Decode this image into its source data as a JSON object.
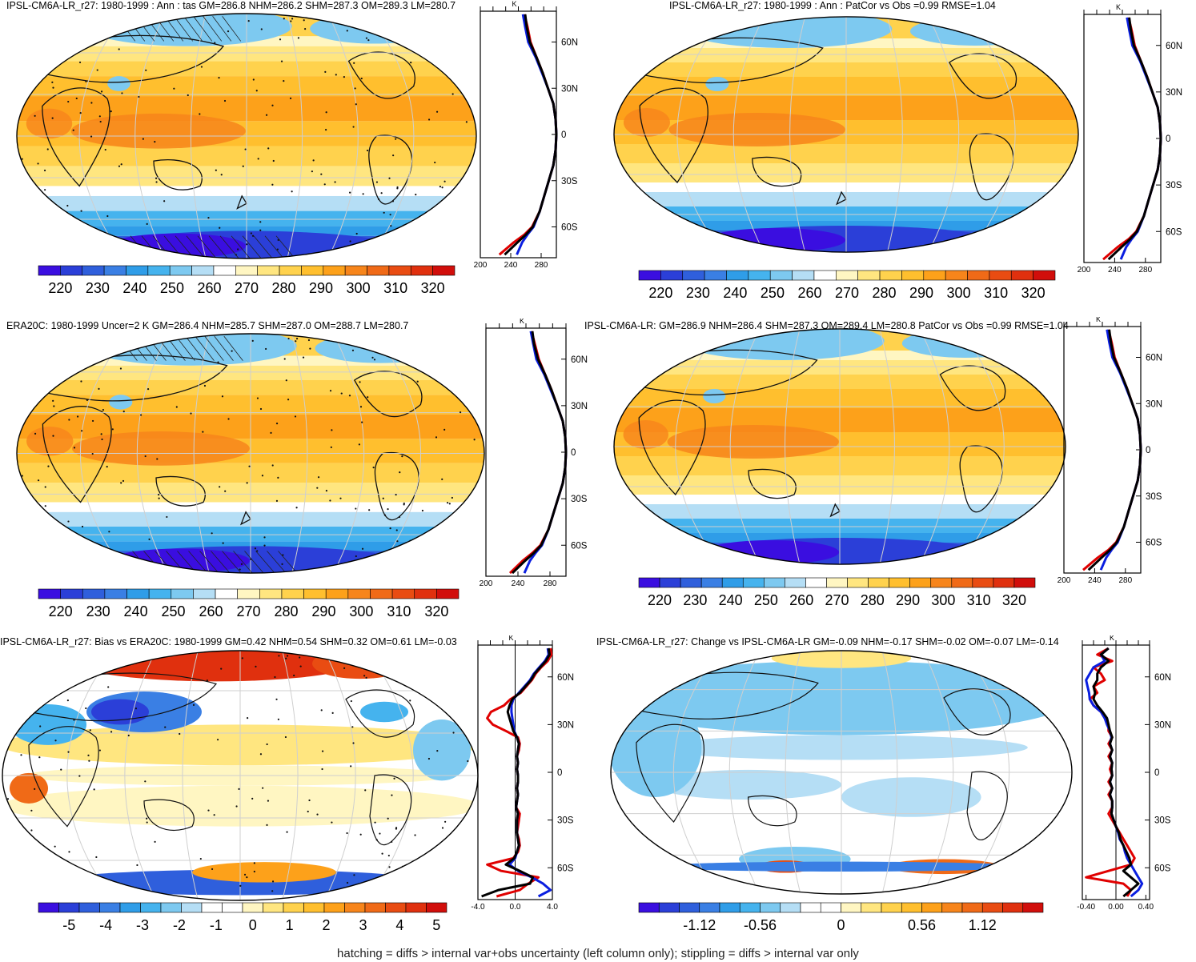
{
  "colors": {
    "temp_scale": [
      "#3a0ee0",
      "#2b3fd8",
      "#2f5fdc",
      "#3a7fe4",
      "#2f9de8",
      "#45b3ee",
      "#7dc9f0",
      "#b5def5",
      "#ffffff",
      "#fff6c2",
      "#ffe680",
      "#ffd24d",
      "#ffbf2e",
      "#fda11a",
      "#f7851b",
      "#f06a17",
      "#e94c12",
      "#e0300e",
      "#d10e0b"
    ],
    "bias_scale": [
      "#3a0ee0",
      "#2b3fd8",
      "#2f5fdc",
      "#3a7fe4",
      "#2f9de8",
      "#45b3ee",
      "#7dc9f0",
      "#b5def5",
      "#ffffff",
      "#ffffff",
      "#fff6c2",
      "#ffe680",
      "#ffd24d",
      "#ffbf2e",
      "#fda11a",
      "#f7851b",
      "#f06a17",
      "#e94c12",
      "#e0300e",
      "#d10e0b"
    ],
    "change_scale": [
      "#3a0ee0",
      "#2b3fd8",
      "#2f5fdc",
      "#3a7fe4",
      "#2f9de8",
      "#45b3ee",
      "#7dc9f0",
      "#b5def5",
      "#ffffff",
      "#ffffff",
      "#fff6c2",
      "#ffe680",
      "#ffd24d",
      "#ffbf2e",
      "#fda11a",
      "#f7851b",
      "#f06a17",
      "#e94c12",
      "#e0300e",
      "#d10e0b"
    ],
    "series": {
      "model": "#e00000",
      "obs": "#0a1ee0",
      "ref": "#000000"
    }
  },
  "chart_data": [
    {
      "type": "heatmap",
      "title": "IPSL-CM6A-LR_r27: 1980-1999 : Ann : tas GM=286.8 NHM=286.2 SHM=287.3 OM=289.3 LM=280.7",
      "colorbar_ticks": [
        "220",
        "230",
        "240",
        "250",
        "260",
        "270",
        "280",
        "290",
        "300",
        "310",
        "320"
      ],
      "zonal_profile": {
        "unit": "K",
        "x_ticks": [
          "200",
          "240",
          "280"
        ],
        "y_ticks": [
          "60N",
          "30N",
          "0",
          "30S",
          "60S"
        ],
        "xlim": [
          200,
          300
        ],
        "lat": [
          78,
          70,
          60,
          50,
          40,
          30,
          20,
          10,
          0,
          -10,
          -20,
          -30,
          -40,
          -50,
          -60,
          -65,
          -70,
          -78
        ],
        "series": [
          {
            "values": [
              258,
              262,
              266,
              274,
              282,
              289,
              296,
              299,
              300,
              299,
              296,
              290,
              284,
              278,
              268,
              258,
              244,
              225
            ]
          },
          {
            "values": [
              256,
              259,
              263,
              273,
              281,
              289,
              296,
              299,
              300,
              299,
              296,
              290,
              284,
              278,
              270,
              262,
              255,
              248
            ]
          },
          {
            "values": [
              259,
              261,
              265,
              274,
              282,
              289,
              296,
              299,
              300,
              299,
              296,
              290,
              284,
              278,
              269,
              260,
              249,
              232
            ]
          }
        ]
      }
    },
    {
      "type": "heatmap",
      "title": "IPSL-CM6A-LR_r27: 1980-1999 : Ann : PatCor vs Obs =0.99 RMSE=1.04",
      "colorbar_ticks": [
        "220",
        "230",
        "240",
        "250",
        "260",
        "270",
        "280",
        "290",
        "300",
        "310",
        "320"
      ],
      "zonal_profile": {
        "unit": "K",
        "x_ticks": [
          "200",
          "240",
          "280"
        ],
        "y_ticks": [
          "60N",
          "30N",
          "0",
          "30S",
          "60S"
        ],
        "xlim": [
          200,
          300
        ],
        "lat": [
          78,
          70,
          60,
          50,
          40,
          30,
          20,
          10,
          0,
          -10,
          -20,
          -30,
          -40,
          -50,
          -60,
          -65,
          -70,
          -78
        ],
        "series": [
          {
            "values": [
              258,
              262,
              266,
              274,
              282,
              289,
              296,
              299,
              300,
              299,
              296,
              290,
              284,
              278,
              268,
              258,
              244,
              225
            ]
          },
          {
            "values": [
              256,
              259,
              263,
              273,
              281,
              289,
              296,
              299,
              300,
              299,
              296,
              290,
              284,
              278,
              270,
              262,
              255,
              248
            ]
          },
          {
            "values": [
              259,
              261,
              265,
              274,
              282,
              289,
              296,
              299,
              300,
              299,
              296,
              290,
              284,
              278,
              269,
              260,
              249,
              232
            ]
          }
        ]
      }
    },
    {
      "type": "heatmap",
      "title": "ERA20C: 1980-1999 Uncer=2 K GM=286.4 NHM=285.7 SHM=287.0 OM=288.7 LM=280.7",
      "colorbar_ticks": [
        "220",
        "230",
        "240",
        "250",
        "260",
        "270",
        "280",
        "290",
        "300",
        "310",
        "320"
      ],
      "zonal_profile": {
        "unit": "K",
        "x_ticks": [
          "200",
          "240",
          "280"
        ],
        "y_ticks": [
          "60N",
          "30N",
          "0",
          "30S",
          "60S"
        ],
        "xlim": [
          200,
          300
        ],
        "lat": [
          78,
          70,
          60,
          50,
          40,
          30,
          20,
          10,
          0,
          -10,
          -20,
          -30,
          -40,
          -50,
          -60,
          -65,
          -70,
          -78
        ],
        "series": [
          {
            "values": [
              257,
              261,
              266,
              274,
              282,
              289,
              296,
              299,
              300,
              299,
              296,
              290,
              284,
              278,
              268,
              258,
              246,
              230
            ]
          },
          {
            "values": [
              256,
              259,
              263,
              273,
              281,
              289,
              296,
              299,
              300,
              299,
              296,
              290,
              284,
              278,
              270,
              262,
              255,
              248
            ]
          },
          {
            "values": [
              258,
              260,
              265,
              274,
              282,
              289,
              296,
              299,
              300,
              299,
              296,
              290,
              284,
              278,
              269,
              260,
              249,
              233
            ]
          }
        ]
      }
    },
    {
      "type": "heatmap",
      "title": "IPSL-CM6A-LR: GM=286.9 NHM=286.4 SHM=287.3 OM=289.4 LM=280.8 PatCor vs Obs =0.99 RMSE=1.04",
      "colorbar_ticks": [
        "220",
        "230",
        "240",
        "250",
        "260",
        "270",
        "280",
        "290",
        "300",
        "310",
        "320"
      ],
      "zonal_profile": {
        "unit": "K",
        "x_ticks": [
          "200",
          "240",
          "280"
        ],
        "y_ticks": [
          "60N",
          "30N",
          "0",
          "30S",
          "60S"
        ],
        "xlim": [
          200,
          300
        ],
        "lat": [
          78,
          70,
          60,
          50,
          40,
          30,
          20,
          10,
          0,
          -10,
          -20,
          -30,
          -40,
          -50,
          -60,
          -65,
          -70,
          -78
        ],
        "series": [
          {
            "values": [
              258,
              262,
              266,
              274,
              282,
              289,
              296,
              299,
              300,
              299,
              296,
              290,
              284,
              278,
              268,
              258,
              244,
              225
            ]
          },
          {
            "values": [
              256,
              259,
              263,
              273,
              281,
              289,
              296,
              299,
              300,
              299,
              296,
              290,
              284,
              278,
              270,
              262,
              255,
              248
            ]
          },
          {
            "values": [
              259,
              261,
              265,
              274,
              282,
              289,
              296,
              299,
              300,
              299,
              296,
              290,
              284,
              278,
              269,
              260,
              249,
              232
            ]
          }
        ]
      }
    },
    {
      "type": "heatmap",
      "title": "IPSL-CM6A-LR_r27: Bias vs ERA20C: 1980-1999 GM=0.42 NHM=0.54 SHM=0.32 OM=0.61 LM=-0.03",
      "colorbar_ticks": [
        "-5",
        "-4",
        "-3",
        "-2",
        "-1",
        "0",
        "1",
        "2",
        "3",
        "4",
        "5"
      ],
      "zonal_profile": {
        "unit": "K",
        "x_ticks": [
          "-4.0",
          "0.0",
          "4.0"
        ],
        "y_ticks": [
          "60N",
          "30N",
          "0",
          "30S",
          "60S"
        ],
        "xlim": [
          -4,
          4
        ],
        "lat": [
          78,
          74,
          70,
          66,
          62,
          58,
          54,
          50,
          46,
          42,
          38,
          34,
          30,
          26,
          22,
          18,
          14,
          10,
          6,
          2,
          -2,
          -6,
          -10,
          -14,
          -18,
          -22,
          -26,
          -30,
          -34,
          -38,
          -42,
          -46,
          -50,
          -54,
          -58,
          -62,
          -66,
          -70,
          -74,
          -78
        ],
        "series": [
          {
            "values": [
              3.8,
              3.9,
              3.5,
              2.8,
              2.2,
              1.8,
              1.2,
              0.6,
              -0.5,
              -1.2,
              -2.6,
              -3.0,
              -2.4,
              -1.0,
              0.3,
              0.5,
              0.4,
              0.2,
              0.3,
              0.2,
              0.3,
              0.3,
              0.2,
              0.3,
              0.2,
              0.1,
              0.5,
              0.4,
              0.3,
              0.2,
              0.4,
              0.5,
              0.3,
              -0.2,
              -3.0,
              -1.5,
              2.5,
              1.4,
              0.5,
              -2.0
            ]
          },
          {
            "values": [
              3.5,
              3.6,
              3.2,
              2.6,
              2.0,
              1.6,
              1.0,
              0.4,
              -0.2,
              -0.4,
              -0.4,
              -0.3,
              -0.2,
              -0.1,
              0.2,
              0.4,
              0.3,
              0.2,
              0.3,
              0.2,
              0.3,
              0.3,
              0.2,
              0.3,
              0.2,
              0.1,
              0.3,
              0.2,
              0.2,
              0.2,
              0.3,
              0.4,
              0.2,
              0.0,
              -0.6,
              0.3,
              1.8,
              3.0,
              3.8,
              2.5
            ]
          },
          {
            "values": [
              3.6,
              3.7,
              3.3,
              2.7,
              2.1,
              1.7,
              1.1,
              0.5,
              -0.3,
              -0.6,
              -0.8,
              -0.6,
              -0.4,
              -0.2,
              0.2,
              0.4,
              0.3,
              0.2,
              0.3,
              0.2,
              0.3,
              0.3,
              0.2,
              0.3,
              0.2,
              0.1,
              0.3,
              0.2,
              0.2,
              0.2,
              0.3,
              0.4,
              0.2,
              -0.1,
              -1.0,
              0.5,
              1.9,
              1.6,
              -1.8,
              -3.6
            ]
          }
        ]
      }
    },
    {
      "type": "heatmap",
      "title": "IPSL-CM6A-LR_r27: Change vs IPSL-CM6A-LR GM=-0.09 NHM=-0.17 SHM=-0.02 OM=-0.07 LM=-0.14",
      "colorbar_ticks": [
        "-1.12",
        "-0.56",
        "0",
        "0.56",
        "1.12"
      ],
      "zonal_profile": {
        "unit": "K",
        "x_ticks": [
          "-0.40",
          "0.00",
          "0.40"
        ],
        "y_ticks": [
          "60N",
          "30N",
          "0",
          "30S",
          "60S"
        ],
        "xlim": [
          -0.45,
          0.45
        ],
        "lat": [
          78,
          74,
          70,
          66,
          62,
          58,
          54,
          50,
          46,
          42,
          38,
          34,
          30,
          26,
          22,
          18,
          14,
          10,
          6,
          2,
          -2,
          -6,
          -10,
          -14,
          -18,
          -22,
          -26,
          -30,
          -34,
          -38,
          -42,
          -46,
          -50,
          -54,
          -58,
          -62,
          -66,
          -70,
          -74,
          -78
        ],
        "series": [
          {
            "values": [
              -0.1,
              -0.25,
              -0.05,
              -0.3,
              -0.2,
              -0.15,
              -0.3,
              -0.25,
              -0.35,
              -0.3,
              -0.2,
              -0.15,
              -0.1,
              -0.1,
              -0.05,
              -0.1,
              -0.05,
              -0.1,
              -0.05,
              -0.08,
              -0.05,
              -0.1,
              -0.05,
              -0.1,
              -0.05,
              -0.05,
              -0.1,
              -0.05,
              0.0,
              0.05,
              0.1,
              0.15,
              0.2,
              0.25,
              0.2,
              -0.1,
              -0.4,
              0.1,
              0.2,
              0.15
            ]
          },
          {
            "values": [
              -0.1,
              -0.2,
              -0.15,
              -0.3,
              -0.35,
              -0.4,
              -0.38,
              -0.36,
              -0.35,
              -0.3,
              -0.2,
              -0.15,
              -0.12,
              -0.08,
              -0.06,
              -0.08,
              -0.05,
              -0.08,
              -0.05,
              -0.06,
              -0.05,
              -0.08,
              -0.05,
              -0.08,
              -0.05,
              -0.05,
              -0.06,
              -0.03,
              0.0,
              0.03,
              0.05,
              0.1,
              0.12,
              0.15,
              0.2,
              0.25,
              0.3,
              0.35,
              0.3,
              0.2
            ]
          },
          {
            "values": [
              -0.1,
              -0.2,
              -0.1,
              -0.2,
              -0.25,
              -0.25,
              -0.3,
              -0.28,
              -0.3,
              -0.25,
              -0.18,
              -0.12,
              -0.1,
              -0.08,
              -0.05,
              -0.08,
              -0.05,
              -0.08,
              -0.05,
              -0.06,
              -0.05,
              -0.08,
              -0.05,
              -0.08,
              -0.05,
              -0.05,
              -0.06,
              -0.03,
              0.0,
              0.04,
              0.06,
              0.1,
              0.14,
              0.18,
              0.2,
              0.1,
              0.2,
              0.3,
              0.2,
              0.1
            ]
          }
        ]
      }
    }
  ],
  "footer": "hatching = diffs > internal var+obs uncertainty (left column only); stippling = diffs > internal var only"
}
